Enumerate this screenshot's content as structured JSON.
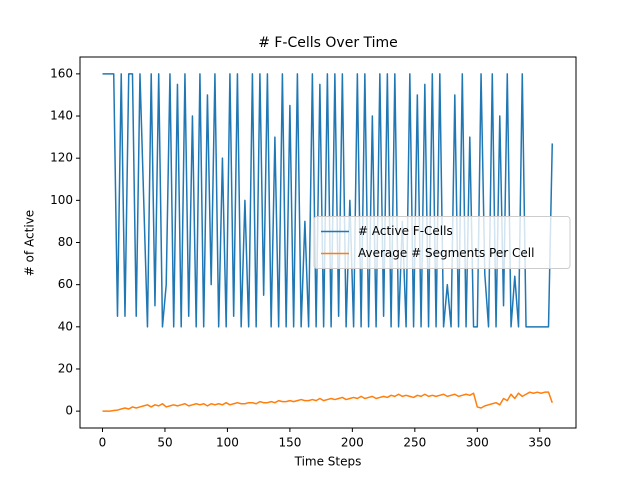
{
  "chart_data": {
    "type": "line",
    "title": "# F-Cells Over Time",
    "x_label": "Time Steps",
    "y_label": "# of Active",
    "x": [
      0,
      3,
      6,
      9,
      12,
      15,
      18,
      21,
      24,
      27,
      30,
      33,
      36,
      39,
      42,
      45,
      48,
      51,
      54,
      57,
      60,
      63,
      66,
      69,
      72,
      75,
      78,
      81,
      84,
      87,
      90,
      93,
      96,
      99,
      102,
      105,
      108,
      111,
      114,
      117,
      120,
      123,
      126,
      129,
      132,
      135,
      138,
      141,
      144,
      147,
      150,
      153,
      156,
      159,
      162,
      165,
      168,
      171,
      174,
      177,
      180,
      183,
      186,
      189,
      192,
      195,
      198,
      201,
      204,
      207,
      210,
      213,
      216,
      219,
      222,
      225,
      228,
      231,
      234,
      237,
      240,
      243,
      246,
      249,
      252,
      255,
      258,
      261,
      264,
      267,
      270,
      273,
      276,
      279,
      282,
      285,
      288,
      291,
      294,
      297,
      300,
      303,
      306,
      309,
      312,
      315,
      318,
      321,
      324,
      327,
      330,
      333,
      336,
      339,
      342,
      345,
      348,
      351,
      354,
      357,
      360
    ],
    "series": [
      {
        "name": "# Active F-Cells",
        "color": "#1f77b4",
        "values": [
          160,
          160,
          160,
          160,
          45,
          160,
          45,
          160,
          160,
          45,
          160,
          100,
          40,
          160,
          50,
          160,
          40,
          60,
          160,
          40,
          155,
          40,
          160,
          45,
          140,
          40,
          160,
          40,
          150,
          60,
          160,
          40,
          120,
          40,
          160,
          45,
          160,
          40,
          100,
          40,
          160,
          40,
          160,
          55,
          160,
          40,
          130,
          40,
          160,
          40,
          145,
          40,
          160,
          40,
          90,
          40,
          160,
          40,
          155,
          40,
          160,
          40,
          160,
          45,
          160,
          40,
          100,
          40,
          160,
          40,
          160,
          40,
          140,
          40,
          160,
          45,
          160,
          40,
          160,
          40,
          90,
          40,
          160,
          40,
          150,
          40,
          155,
          40,
          160,
          40,
          160,
          40,
          60,
          40,
          150,
          40,
          160,
          40,
          130,
          40,
          40,
          160,
          65,
          40,
          160,
          40,
          140,
          50,
          160,
          40,
          64,
          40,
          160,
          40,
          40,
          40,
          40,
          40,
          40,
          40,
          127
        ]
      },
      {
        "name": "Average # Segments Per Cell",
        "color": "#ff7f0e",
        "values": [
          0,
          0,
          0,
          0.3,
          0.5,
          1,
          1.5,
          1,
          2,
          1.5,
          2,
          2.5,
          3,
          2,
          3,
          2.5,
          3.5,
          2,
          2.5,
          3,
          2.5,
          3,
          3.5,
          2.5,
          3,
          3.5,
          3,
          3.5,
          2.5,
          3.5,
          3,
          3.5,
          3,
          4,
          3,
          3.5,
          4,
          3.5,
          3.5,
          4,
          4,
          3.5,
          4.5,
          4,
          4,
          4.5,
          4,
          5,
          4.5,
          4.5,
          5,
          4.5,
          5,
          5.5,
          5,
          5,
          5.5,
          5,
          6,
          5,
          5.5,
          6,
          5.5,
          6,
          6.5,
          5.5,
          6,
          6.5,
          6,
          7,
          6,
          6.5,
          7,
          6,
          6.5,
          7,
          6.5,
          7.5,
          7,
          8,
          7,
          7.5,
          7,
          6.5,
          7.5,
          7,
          8,
          7,
          7.5,
          7,
          7.5,
          8,
          7,
          7.5,
          8,
          7,
          7.5,
          8,
          7.5,
          8.5,
          2,
          1.5,
          2.5,
          3,
          3.5,
          4,
          3,
          6,
          5,
          8,
          6,
          8.5,
          7,
          8,
          9,
          8.5,
          9,
          8.5,
          9,
          9,
          4
        ]
      }
    ],
    "xlim": [
      -18,
      379
    ],
    "ylim": [
      -8,
      168
    ],
    "xticks": [
      0,
      50,
      100,
      150,
      200,
      250,
      300,
      350
    ],
    "yticks": [
      0,
      20,
      40,
      60,
      80,
      100,
      120,
      140,
      160
    ],
    "legend": "center right"
  }
}
